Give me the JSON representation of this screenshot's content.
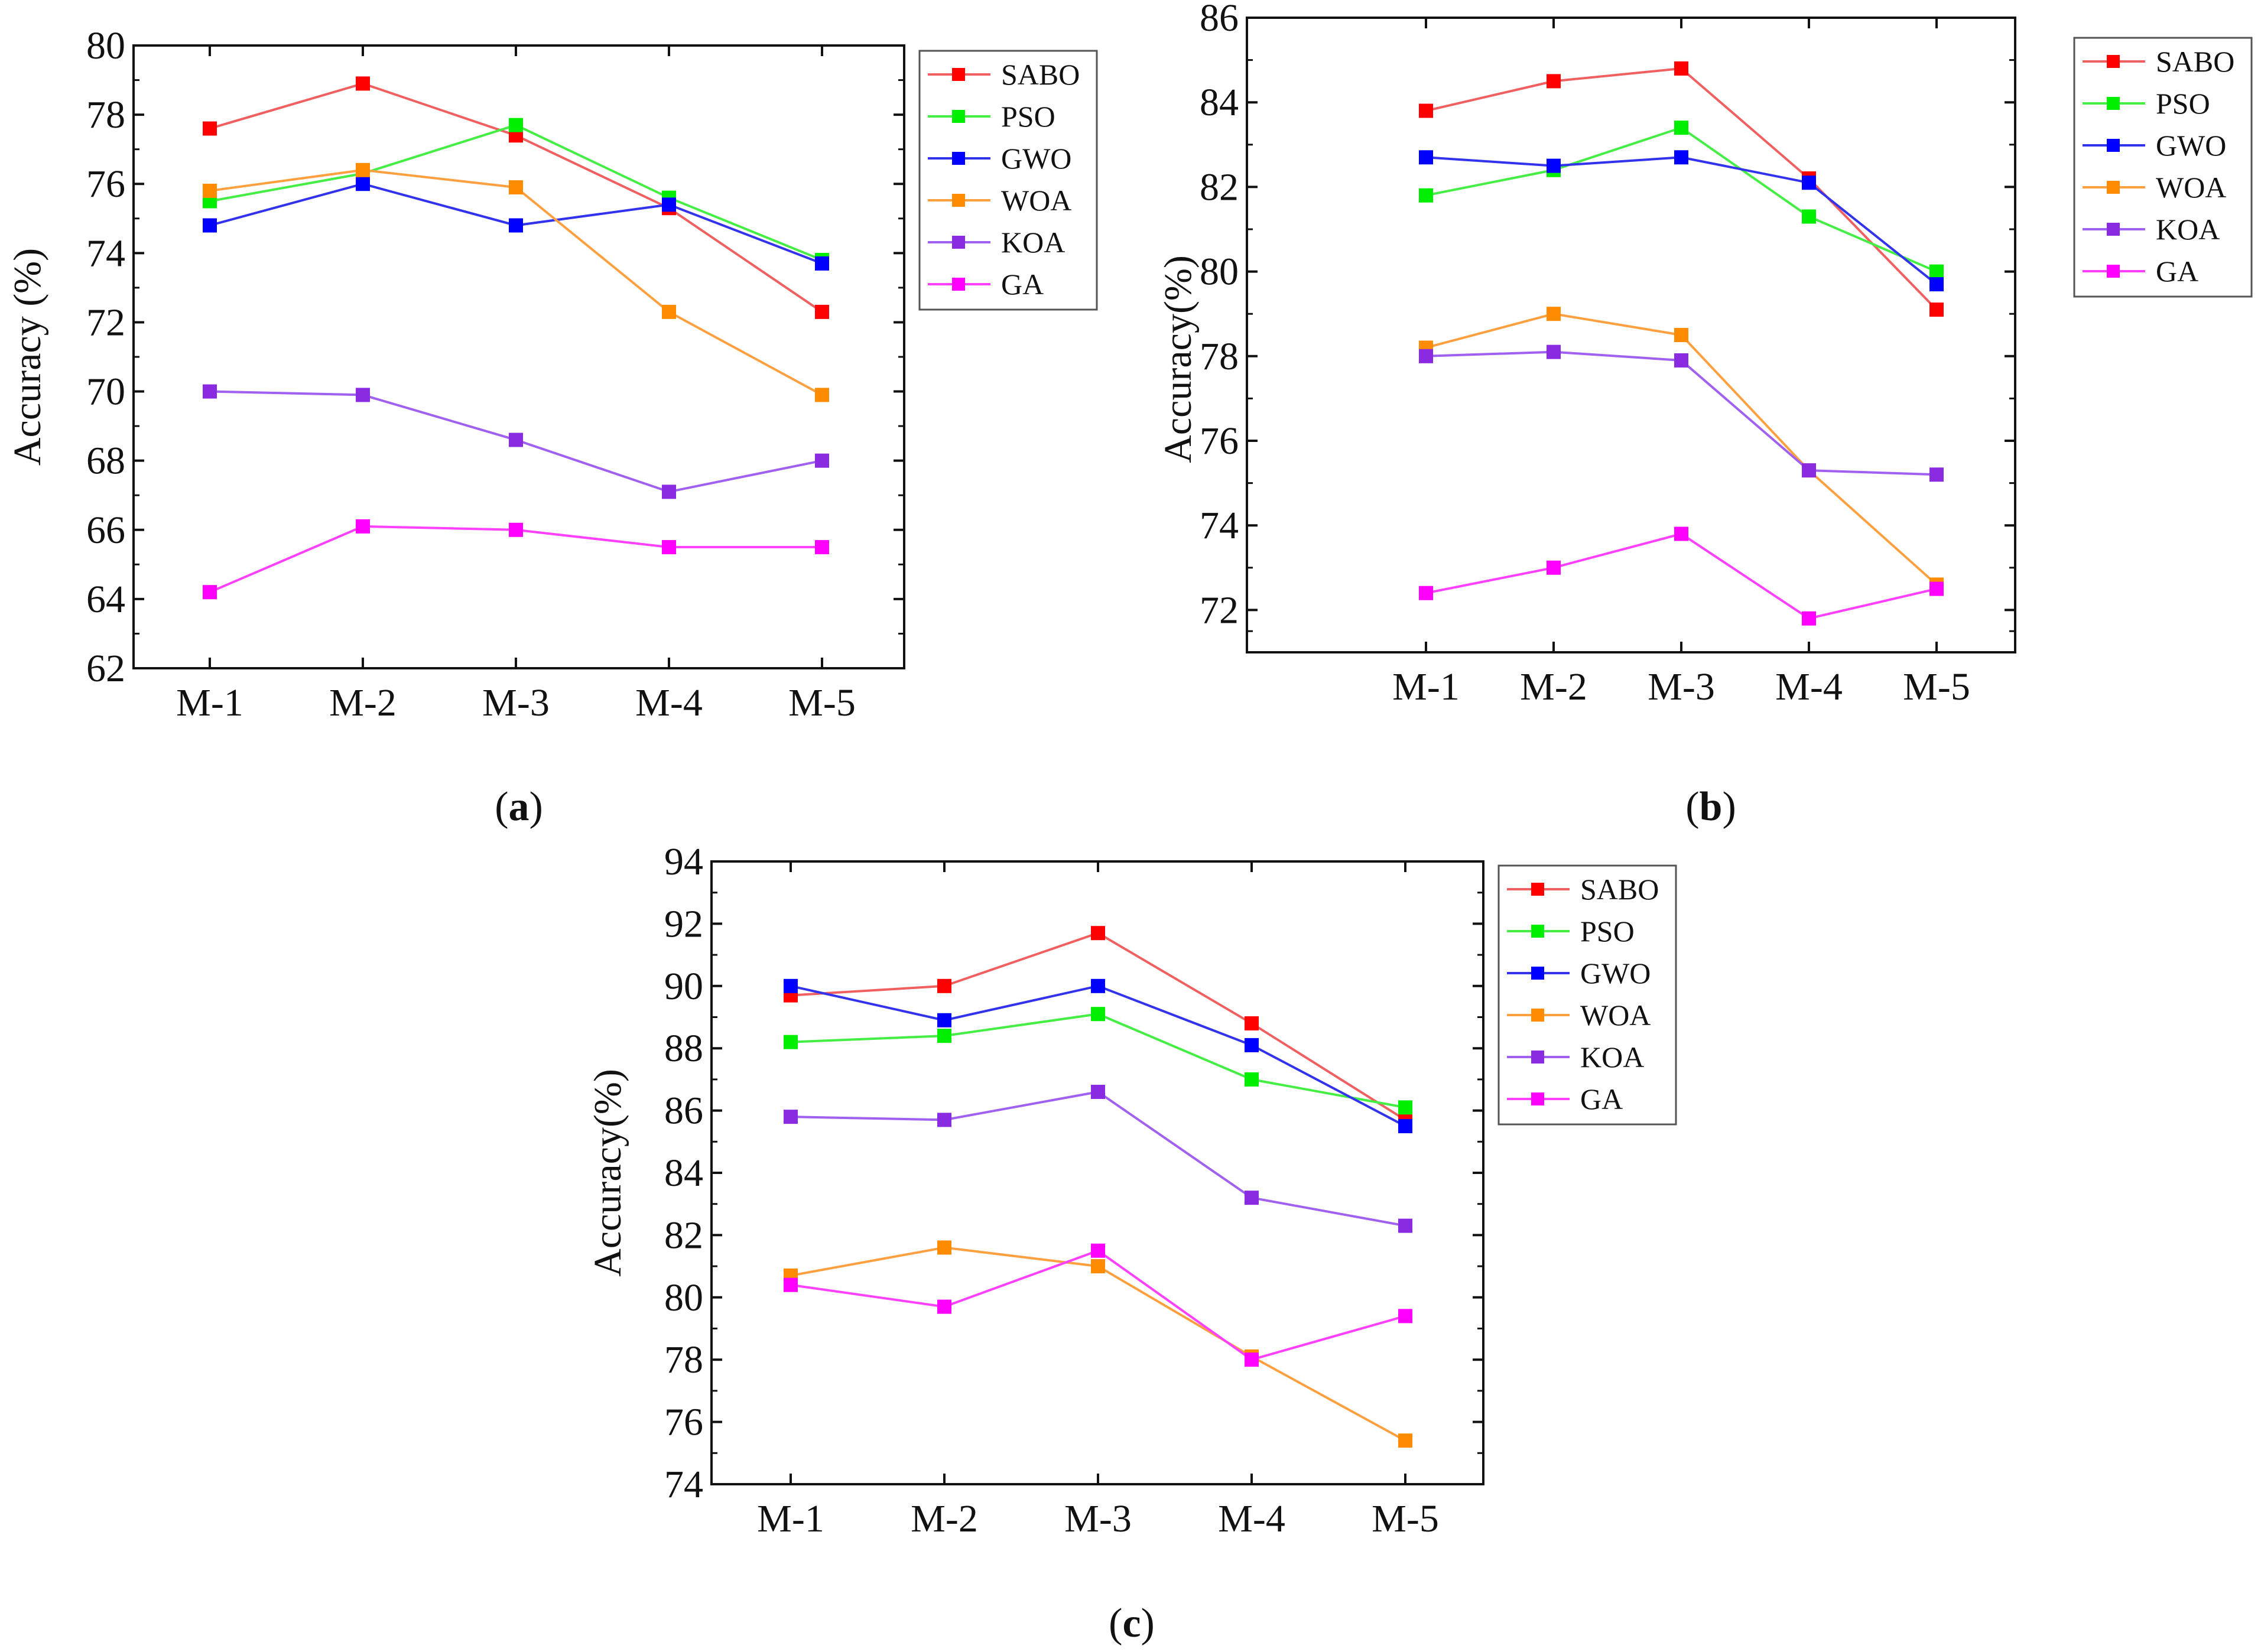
{
  "chart_data": [
    {
      "panel": "a",
      "caption_letter": "a",
      "type": "line",
      "title": "",
      "xlabel": "",
      "ylabel": "Accuracy (%)",
      "ylim": [
        62,
        80
      ],
      "yticks": [
        62,
        64,
        66,
        68,
        70,
        72,
        74,
        76,
        78,
        80
      ],
      "categories": [
        "M-1",
        "M-2",
        "M-3",
        "M-4",
        "M-5"
      ],
      "legend_position": "top-right",
      "series": [
        {
          "name": "SABO",
          "color": "#ff0000",
          "line_color": "#f06060",
          "values": [
            77.6,
            78.9,
            77.4,
            75.3,
            72.3
          ]
        },
        {
          "name": "PSO",
          "color": "#00ee00",
          "line_color": "#44ee44",
          "values": [
            75.5,
            76.3,
            77.7,
            75.6,
            73.8
          ]
        },
        {
          "name": "GWO",
          "color": "#0000ff",
          "line_color": "#3333ee",
          "values": [
            74.8,
            76.0,
            74.8,
            75.4,
            73.7
          ]
        },
        {
          "name": "WOA",
          "color": "#ff8c00",
          "line_color": "#ffa040",
          "values": [
            75.8,
            76.4,
            75.9,
            72.3,
            69.9
          ]
        },
        {
          "name": "KOA",
          "color": "#8a2be2",
          "line_color": "#a060f0",
          "values": [
            70.0,
            69.9,
            68.6,
            67.1,
            68.0
          ]
        },
        {
          "name": "GA",
          "color": "#ff00ff",
          "line_color": "#ff40ff",
          "values": [
            64.2,
            66.1,
            66.0,
            65.5,
            65.5
          ]
        }
      ]
    },
    {
      "panel": "b",
      "caption_letter": "b",
      "type": "line",
      "title": "",
      "xlabel": "",
      "ylabel": "Accuracy(%)",
      "ylim": [
        71,
        86
      ],
      "yticks": [
        72,
        74,
        76,
        78,
        80,
        82,
        84,
        86
      ],
      "categories": [
        "M-1",
        "M-2",
        "M-3",
        "M-4",
        "M-5"
      ],
      "legend_position": "top-right",
      "series": [
        {
          "name": "SABO",
          "color": "#ff0000",
          "line_color": "#f06060",
          "values": [
            83.8,
            84.5,
            84.8,
            82.2,
            79.1
          ]
        },
        {
          "name": "PSO",
          "color": "#00ee00",
          "line_color": "#44ee44",
          "values": [
            81.8,
            82.4,
            83.4,
            81.3,
            80.0
          ]
        },
        {
          "name": "GWO",
          "color": "#0000ff",
          "line_color": "#3333ee",
          "values": [
            82.7,
            82.5,
            82.7,
            82.1,
            79.7
          ]
        },
        {
          "name": "WOA",
          "color": "#ff8c00",
          "line_color": "#ffa040",
          "values": [
            78.2,
            79.0,
            78.5,
            75.3,
            72.6
          ]
        },
        {
          "name": "KOA",
          "color": "#8a2be2",
          "line_color": "#a060f0",
          "values": [
            78.0,
            78.1,
            77.9,
            75.3,
            75.2
          ]
        },
        {
          "name": "GA",
          "color": "#ff00ff",
          "line_color": "#ff40ff",
          "values": [
            72.4,
            73.0,
            73.8,
            71.8,
            72.5
          ]
        }
      ]
    },
    {
      "panel": "c",
      "caption_letter": "c",
      "type": "line",
      "title": "",
      "xlabel": "",
      "ylabel": "Accuracy(%)",
      "ylim": [
        74,
        94
      ],
      "yticks": [
        74,
        76,
        78,
        80,
        82,
        84,
        86,
        88,
        90,
        92,
        94
      ],
      "categories": [
        "M-1",
        "M-2",
        "M-3",
        "M-4",
        "M-5"
      ],
      "legend_position": "top-right",
      "series": [
        {
          "name": "SABO",
          "color": "#ff0000",
          "line_color": "#f06060",
          "values": [
            89.7,
            90.0,
            91.7,
            88.8,
            85.7
          ]
        },
        {
          "name": "PSO",
          "color": "#00ee00",
          "line_color": "#44ee44",
          "values": [
            88.2,
            88.4,
            89.1,
            87.0,
            86.1
          ]
        },
        {
          "name": "GWO",
          "color": "#0000ff",
          "line_color": "#3333ee",
          "values": [
            90.0,
            88.9,
            90.0,
            88.1,
            85.5
          ]
        },
        {
          "name": "WOA",
          "color": "#ff8c00",
          "line_color": "#ffa040",
          "values": [
            80.7,
            81.6,
            81.0,
            78.1,
            75.4
          ]
        },
        {
          "name": "KOA",
          "color": "#8a2be2",
          "line_color": "#a060f0",
          "values": [
            85.8,
            85.7,
            86.6,
            83.2,
            82.3
          ]
        },
        {
          "name": "GA",
          "color": "#ff00ff",
          "line_color": "#ff40ff",
          "values": [
            80.4,
            79.7,
            81.5,
            78.0,
            79.4
          ]
        }
      ]
    }
  ]
}
